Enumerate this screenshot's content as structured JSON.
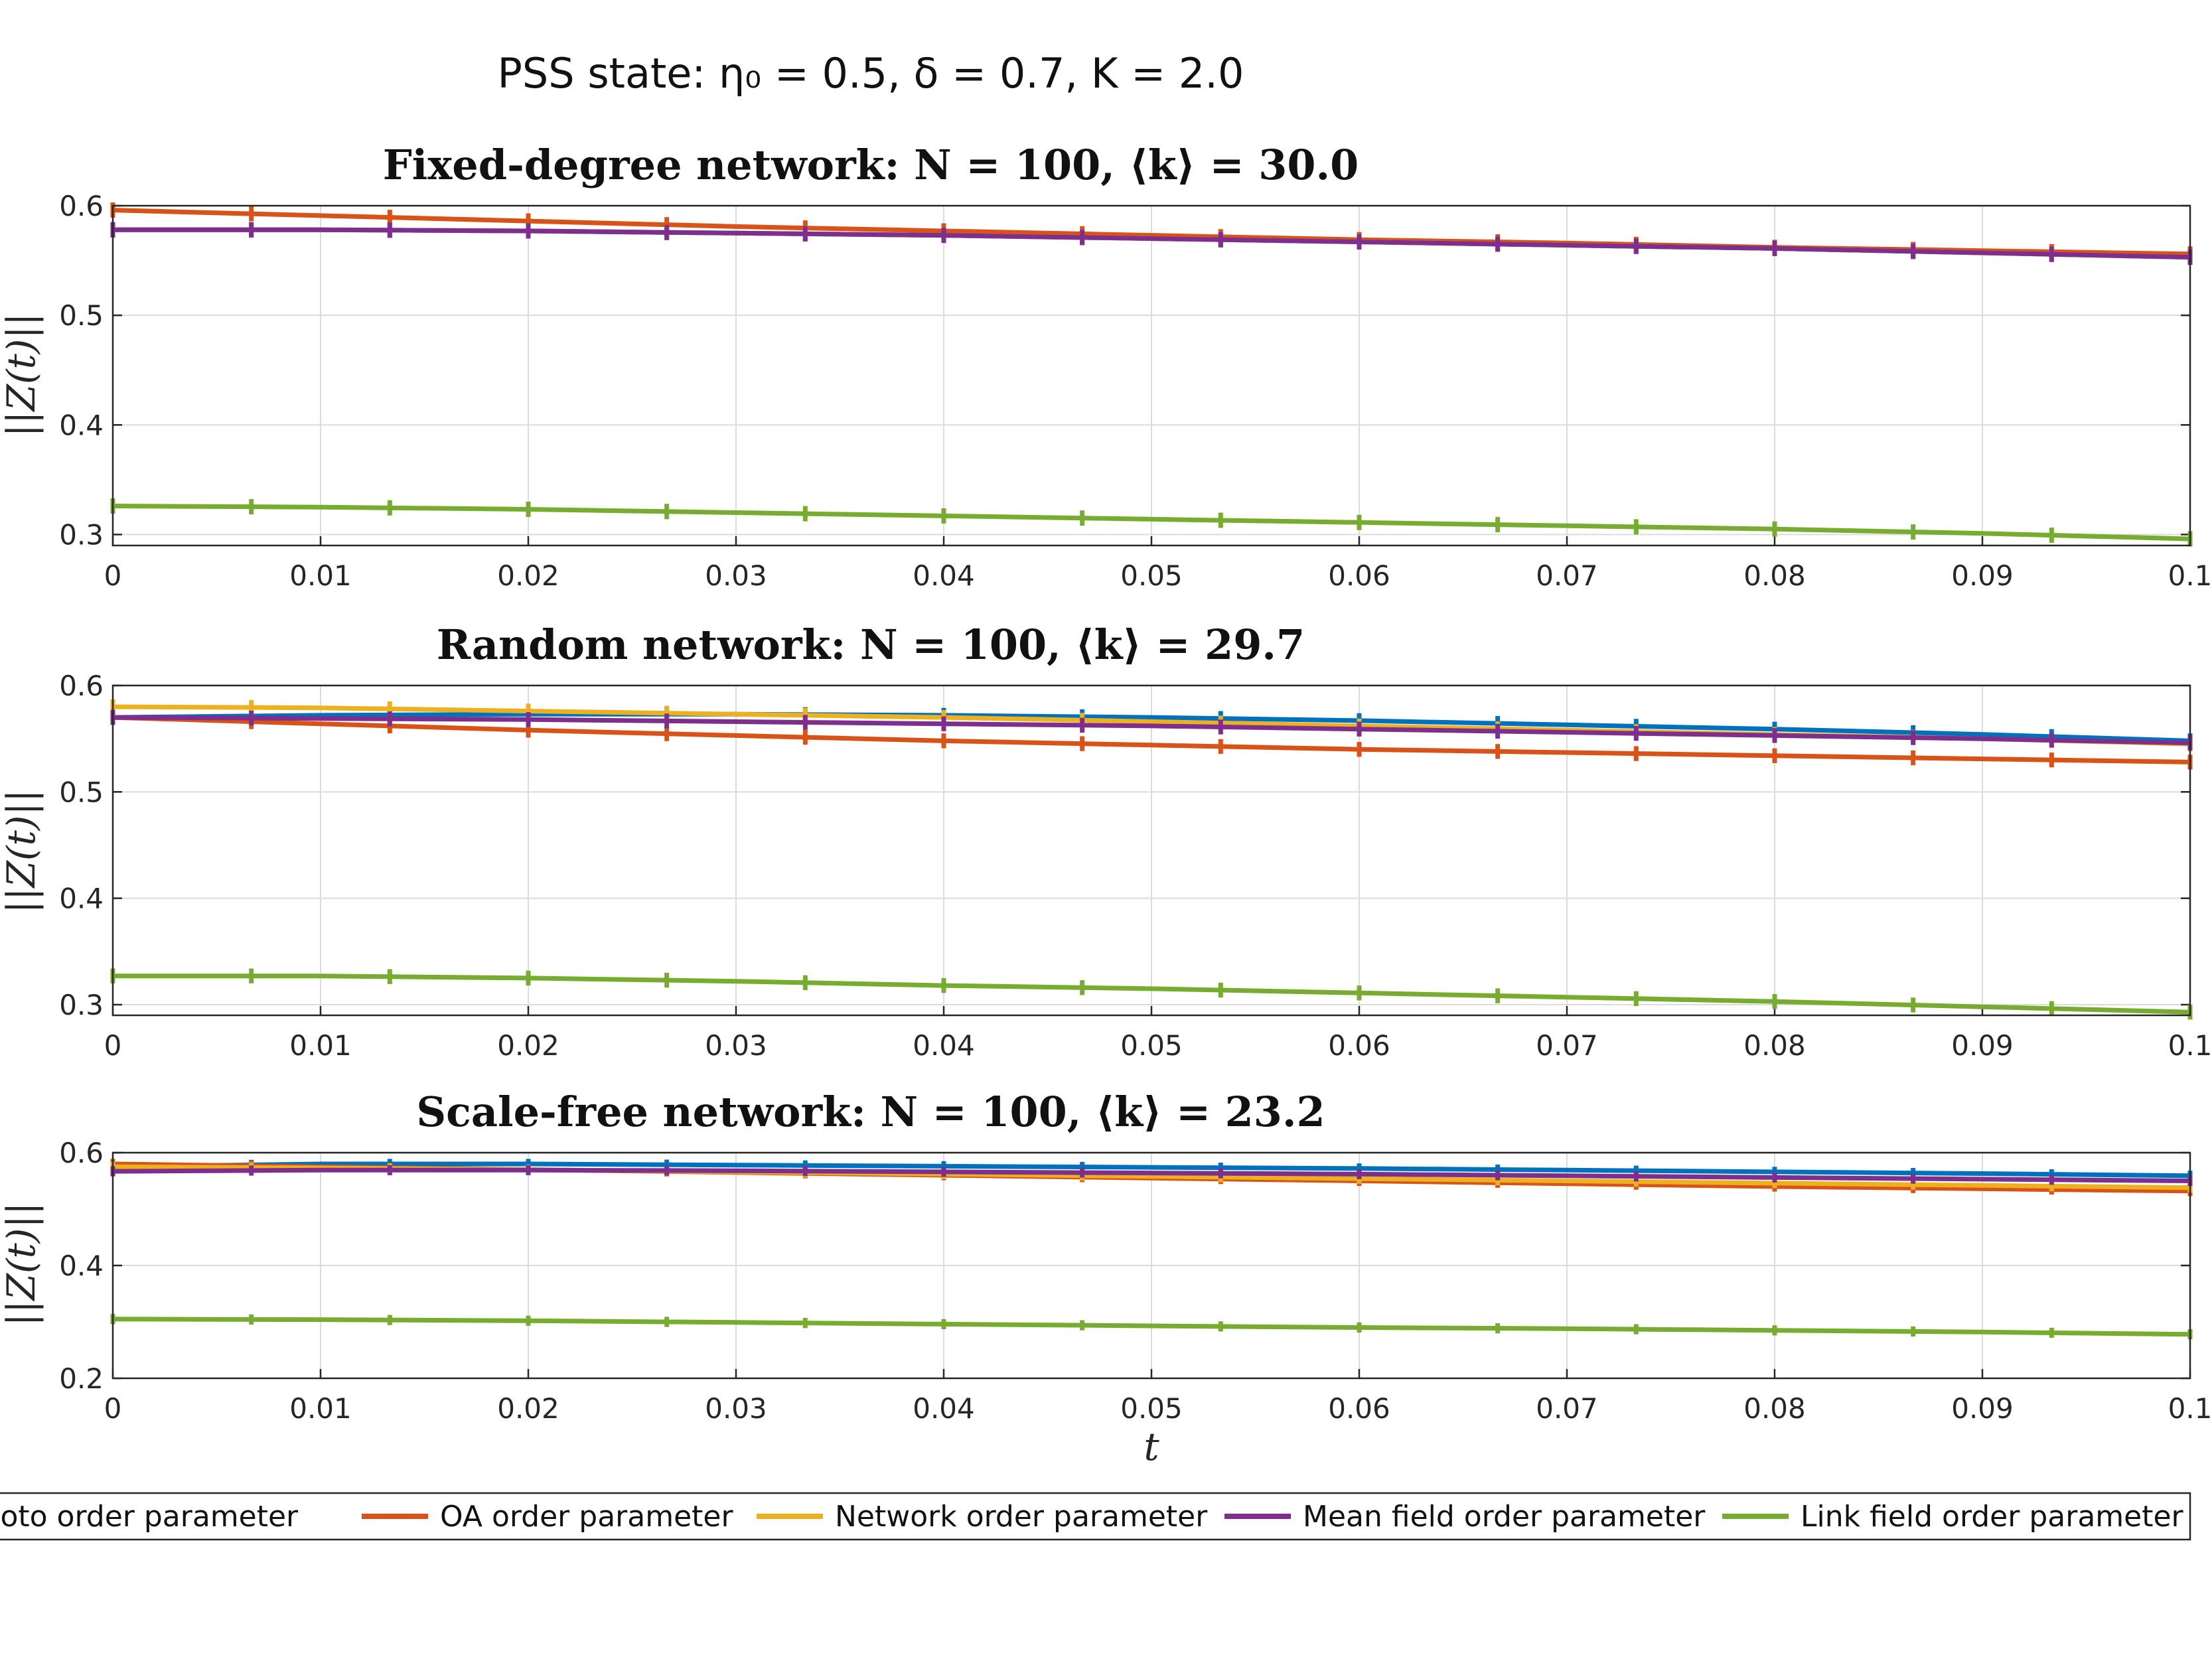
{
  "figure": {
    "suptitle": "PSS state: η₀ = 0.5, δ = 0.7, K = 2.0",
    "colors": {
      "kuramoto": "#0072BD",
      "oa": "#D95319",
      "network": "#EDB120",
      "mean_field": "#7E2F8E",
      "link_field": "#77AC30"
    }
  },
  "legend": {
    "placement": "bottom",
    "items": [
      {
        "key": "kuramoto",
        "label": "Kuramoto order parameter"
      },
      {
        "key": "oa",
        "label": "OA order parameter"
      },
      {
        "key": "network",
        "label": "Network order parameter"
      },
      {
        "key": "mean_field",
        "label": "Mean field order parameter"
      },
      {
        "key": "link_field",
        "label": "Link field order parameter"
      }
    ]
  },
  "chart_data": [
    {
      "type": "line",
      "title": "Fixed-degree network: N = 100, ⟨k⟩ = 30.0",
      "xlabel": "",
      "ylabel": "||Z(t)||",
      "xlim": [
        0,
        0.1
      ],
      "ylim": [
        0.29,
        0.6
      ],
      "xticks": [
        "0",
        "0.01",
        "0.02",
        "0.03",
        "0.04",
        "0.05",
        "0.06",
        "0.07",
        "0.08",
        "0.09",
        "0.1"
      ],
      "yticks": [
        "0.3",
        "0.4",
        "0.5",
        "0.6"
      ],
      "grid": true,
      "x": [
        0,
        0.01,
        0.02,
        0.03,
        0.04,
        0.05,
        0.06,
        0.07,
        0.08,
        0.09,
        0.1
      ],
      "series": [
        {
          "name": "Kuramoto order parameter",
          "key": "kuramoto",
          "values": [
            0.578,
            0.578,
            0.577,
            0.575,
            0.573,
            0.57,
            0.567,
            0.564,
            0.561,
            0.557,
            0.553
          ]
        },
        {
          "name": "OA order parameter",
          "key": "oa",
          "values": [
            0.596,
            0.591,
            0.586,
            0.581,
            0.577,
            0.573,
            0.569,
            0.566,
            0.562,
            0.559,
            0.556
          ]
        },
        {
          "name": "Network order parameter",
          "key": "network",
          "values": [
            0.578,
            0.578,
            0.577,
            0.575,
            0.573,
            0.57,
            0.567,
            0.564,
            0.561,
            0.557,
            0.553
          ]
        },
        {
          "name": "Mean field order parameter",
          "key": "mean_field",
          "values": [
            0.578,
            0.578,
            0.577,
            0.575,
            0.573,
            0.57,
            0.567,
            0.564,
            0.561,
            0.557,
            0.553
          ]
        },
        {
          "name": "Link field order parameter",
          "key": "link_field",
          "values": [
            0.326,
            0.325,
            0.323,
            0.32,
            0.317,
            0.314,
            0.311,
            0.308,
            0.305,
            0.301,
            0.296
          ]
        }
      ]
    },
    {
      "type": "line",
      "title": "Random network: N = 100, ⟨k⟩ = 29.7",
      "xlabel": "",
      "ylabel": "||Z(t)||",
      "xlim": [
        0,
        0.1
      ],
      "ylim": [
        0.29,
        0.6
      ],
      "xticks": [
        "0",
        "0.01",
        "0.02",
        "0.03",
        "0.04",
        "0.05",
        "0.06",
        "0.07",
        "0.08",
        "0.09",
        "0.1"
      ],
      "yticks": [
        "0.3",
        "0.4",
        "0.5",
        "0.6"
      ],
      "grid": true,
      "x": [
        0,
        0.01,
        0.02,
        0.03,
        0.04,
        0.05,
        0.06,
        0.07,
        0.08,
        0.09,
        0.1
      ],
      "series": [
        {
          "name": "Kuramoto order parameter",
          "key": "kuramoto",
          "values": [
            0.57,
            0.572,
            0.573,
            0.573,
            0.572,
            0.57,
            0.567,
            0.563,
            0.559,
            0.554,
            0.548
          ]
        },
        {
          "name": "OA order parameter",
          "key": "oa",
          "values": [
            0.57,
            0.564,
            0.558,
            0.553,
            0.548,
            0.544,
            0.54,
            0.537,
            0.534,
            0.531,
            0.528
          ]
        },
        {
          "name": "Network order parameter",
          "key": "network",
          "values": [
            0.58,
            0.579,
            0.576,
            0.573,
            0.57,
            0.566,
            0.562,
            0.558,
            0.554,
            0.55,
            0.545
          ]
        },
        {
          "name": "Mean field order parameter",
          "key": "mean_field",
          "values": [
            0.57,
            0.569,
            0.568,
            0.566,
            0.564,
            0.562,
            0.559,
            0.556,
            0.553,
            0.55,
            0.546
          ]
        },
        {
          "name": "Link field order parameter",
          "key": "link_field",
          "values": [
            0.327,
            0.327,
            0.325,
            0.322,
            0.318,
            0.315,
            0.311,
            0.307,
            0.303,
            0.298,
            0.293
          ]
        }
      ]
    },
    {
      "type": "line",
      "title": "Scale-free network: N = 100, ⟨k⟩ = 23.2",
      "xlabel": "t",
      "ylabel": "||Z(t)||",
      "xlim": [
        0,
        0.1
      ],
      "ylim": [
        0.2,
        0.6
      ],
      "xticks": [
        "0",
        "0.01",
        "0.02",
        "0.03",
        "0.04",
        "0.05",
        "0.06",
        "0.07",
        "0.08",
        "0.09",
        "0.1"
      ],
      "yticks": [
        "0.2",
        "0.4",
        "0.6"
      ],
      "grid": true,
      "x": [
        0,
        0.01,
        0.02,
        0.03,
        0.04,
        0.05,
        0.06,
        0.07,
        0.08,
        0.09,
        0.1
      ],
      "series": [
        {
          "name": "Kuramoto order parameter",
          "key": "kuramoto",
          "values": [
            0.575,
            0.58,
            0.58,
            0.578,
            0.576,
            0.574,
            0.572,
            0.569,
            0.566,
            0.563,
            0.559
          ]
        },
        {
          "name": "OA order parameter",
          "key": "oa",
          "values": [
            0.58,
            0.575,
            0.57,
            0.565,
            0.56,
            0.555,
            0.55,
            0.545,
            0.54,
            0.536,
            0.532
          ]
        },
        {
          "name": "Network order parameter",
          "key": "network",
          "values": [
            0.575,
            0.573,
            0.57,
            0.566,
            0.562,
            0.558,
            0.554,
            0.55,
            0.546,
            0.542,
            0.538
          ]
        },
        {
          "name": "Mean field order parameter",
          "key": "mean_field",
          "values": [
            0.567,
            0.569,
            0.569,
            0.568,
            0.566,
            0.564,
            0.562,
            0.559,
            0.556,
            0.553,
            0.55
          ]
        },
        {
          "name": "Link field order parameter",
          "key": "link_field",
          "values": [
            0.305,
            0.304,
            0.302,
            0.299,
            0.296,
            0.293,
            0.29,
            0.288,
            0.285,
            0.282,
            0.278
          ]
        }
      ]
    }
  ]
}
